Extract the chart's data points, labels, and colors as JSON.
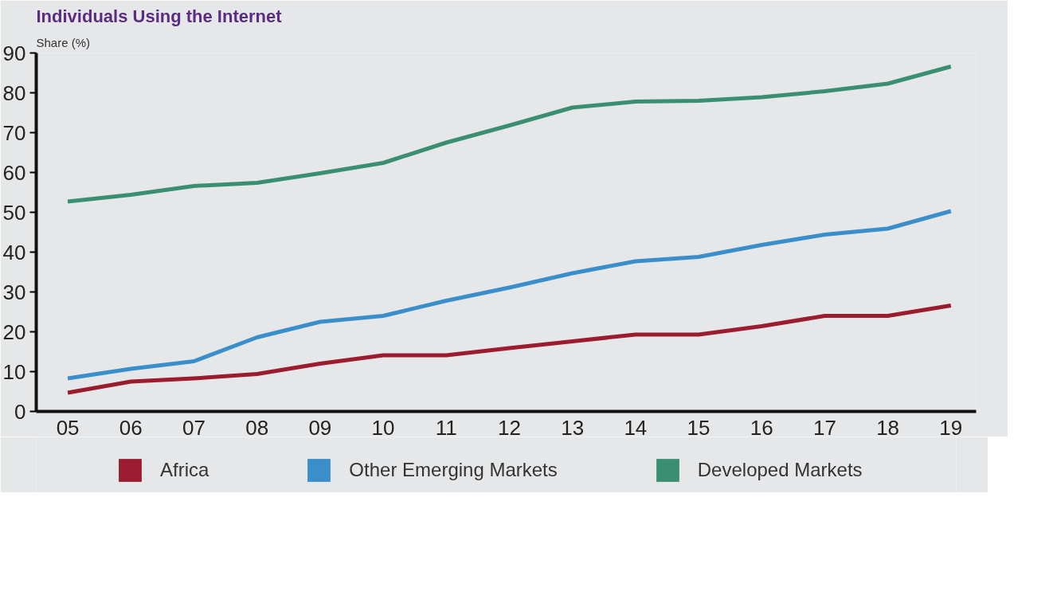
{
  "chart_data": {
    "type": "line",
    "title": "Individuals Using the Internet",
    "ylabel": "Share (%)",
    "categories": [
      "05",
      "06",
      "07",
      "08",
      "09",
      "10",
      "11",
      "12",
      "13",
      "14",
      "15",
      "16",
      "17",
      "18",
      "19"
    ],
    "series": [
      {
        "name": "Africa",
        "color": "#9b1c2e",
        "values": [
          4.7,
          7.5,
          8.3,
          9.4,
          12,
          14.1,
          14.1,
          15.9,
          17.6,
          19.3,
          19.3,
          21.4,
          24,
          24,
          26.6
        ]
      },
      {
        "name": "Other Emerging Markets",
        "color": "#3a8fcb",
        "values": [
          8.3,
          10.7,
          12.6,
          18.6,
          22.5,
          24,
          27.8,
          31.1,
          34.7,
          37.7,
          38.8,
          41.8,
          44.4,
          45.9,
          50.3
        ]
      },
      {
        "name": "Developed Markets",
        "color": "#3a8f72",
        "values": [
          52.7,
          54.4,
          56.6,
          57.4,
          59.8,
          62.4,
          67.5,
          71.8,
          76.3,
          77.8,
          78,
          78.9,
          80.4,
          82.3,
          86.6
        ]
      }
    ],
    "ylim": [
      0,
      90
    ],
    "yticks": [
      0,
      10,
      20,
      30,
      40,
      50,
      60,
      70,
      80,
      90
    ],
    "legend": "bottom",
    "marker": "none",
    "line_style": "solid"
  }
}
